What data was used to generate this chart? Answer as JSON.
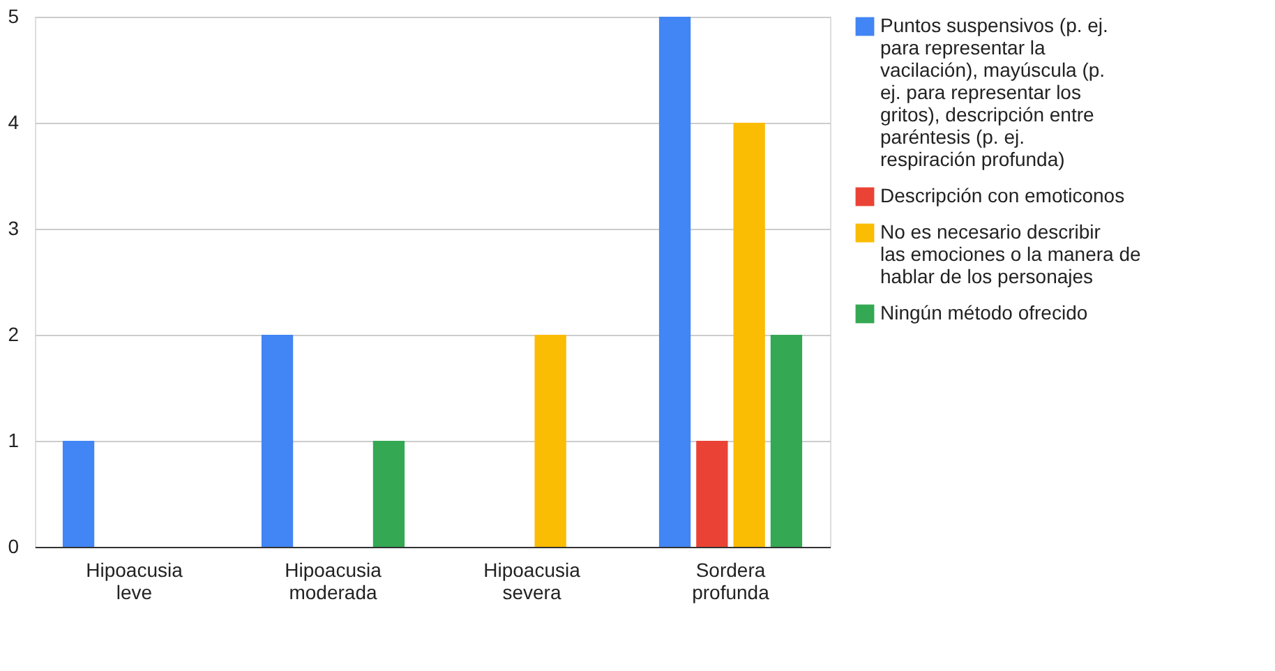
{
  "chart_data": {
    "type": "bar",
    "categories": [
      "Hipoacusia leve",
      "Hipoacusia moderada",
      "Hipoacusia severa",
      "Sordera profunda"
    ],
    "series": [
      {
        "name": "Puntos suspensivos (p. ej. para representar la vacilación), mayúscula (p. ej. para representar los gritos), descripción entre paréntesis (p. ej. respiración profunda)",
        "color": "#4285f4",
        "values": [
          1,
          2,
          0,
          5
        ]
      },
      {
        "name": "Descripción con emoticonos",
        "color": "#ea4335",
        "values": [
          0,
          0,
          0,
          1
        ]
      },
      {
        "name": "No es necesario describir las emociones o la manera de hablar de los personajes",
        "color": "#fbbc04",
        "values": [
          0,
          0,
          2,
          4
        ]
      },
      {
        "name": "Ningún método ofrecido",
        "color": "#34a853",
        "values": [
          0,
          1,
          0,
          2
        ]
      }
    ],
    "ylim": [
      0,
      5
    ],
    "yticks": [
      0,
      1,
      2,
      3,
      4,
      5
    ],
    "grid": "y",
    "legend": "right"
  }
}
